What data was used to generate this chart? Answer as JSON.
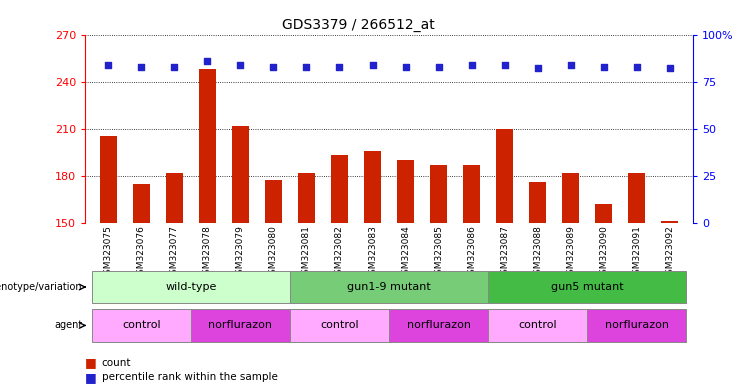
{
  "title": "GDS3379 / 266512_at",
  "samples": [
    "GSM323075",
    "GSM323076",
    "GSM323077",
    "GSM323078",
    "GSM323079",
    "GSM323080",
    "GSM323081",
    "GSM323082",
    "GSM323083",
    "GSM323084",
    "GSM323085",
    "GSM323086",
    "GSM323087",
    "GSM323088",
    "GSM323089",
    "GSM323090",
    "GSM323091",
    "GSM323092"
  ],
  "counts": [
    205,
    175,
    182,
    248,
    212,
    177,
    182,
    193,
    196,
    190,
    187,
    187,
    210,
    176,
    182,
    162,
    182,
    151
  ],
  "percentile_ranks": [
    84,
    83,
    83,
    86,
    84,
    83,
    83,
    83,
    84,
    83,
    83,
    84,
    84,
    82,
    84,
    83,
    83,
    82
  ],
  "ylim_left": [
    150,
    270
  ],
  "ylim_right": [
    0,
    100
  ],
  "yticks_left": [
    150,
    180,
    210,
    240,
    270
  ],
  "yticks_right": [
    0,
    25,
    50,
    75,
    100
  ],
  "bar_color": "#cc2200",
  "dot_color": "#2222cc",
  "background_color": "#ffffff",
  "genotype_groups": [
    {
      "label": "wild-type",
      "start": 0,
      "end": 5,
      "color": "#ccffcc"
    },
    {
      "label": "gun1-9 mutant",
      "start": 6,
      "end": 11,
      "color": "#77cc77"
    },
    {
      "label": "gun5 mutant",
      "start": 12,
      "end": 17,
      "color": "#44bb44"
    }
  ],
  "agent_groups": [
    {
      "label": "control",
      "start": 0,
      "end": 2,
      "color": "#ffaaff"
    },
    {
      "label": "norflurazon",
      "start": 3,
      "end": 5,
      "color": "#dd44dd"
    },
    {
      "label": "control",
      "start": 6,
      "end": 8,
      "color": "#ffaaff"
    },
    {
      "label": "norflurazon",
      "start": 9,
      "end": 11,
      "color": "#dd44dd"
    },
    {
      "label": "control",
      "start": 12,
      "end": 14,
      "color": "#ffaaff"
    },
    {
      "label": "norflurazon",
      "start": 15,
      "end": 17,
      "color": "#dd44dd"
    }
  ],
  "legend_labels": [
    "count",
    "percentile rank within the sample"
  ],
  "legend_colors": [
    "#cc2200",
    "#2222cc"
  ]
}
